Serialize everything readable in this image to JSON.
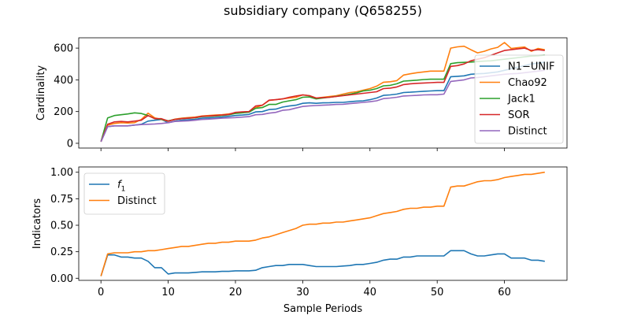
{
  "chart_data": {
    "title": "subsidiary company (Q658255)",
    "xlabel": "Sample Periods",
    "x_ticks": [
      0,
      10,
      20,
      30,
      40,
      50,
      60
    ],
    "xlim": [
      -3.3,
      69.3
    ],
    "panels": [
      {
        "type": "line",
        "ylabel": "Cardinality",
        "ylim": [
          -30,
          665
        ],
        "y_ticks": [
          0,
          200,
          400,
          600
        ],
        "legend_position": "center-right",
        "series": [
          {
            "name": "N1−UNIF",
            "color": "#1f77b4",
            "values": [
              10,
              105,
              110,
              110,
              110,
              115,
              120,
              140,
              145,
              150,
              130,
              140,
              145,
              148,
              150,
              158,
              160,
              162,
              165,
              170,
              175,
              178,
              182,
              198,
              200,
              213,
              215,
              228,
              235,
              240,
              252,
              255,
              252,
              255,
              256,
              258,
              258,
              262,
              266,
              268,
              275,
              285,
              302,
              305,
              310,
              320,
              322,
              325,
              328,
              330,
              332,
              332,
              420,
              422,
              425,
              435,
              438,
              440,
              445,
              450,
              460,
              470,
              480,
              490,
              500,
              505,
              512
            ]
          },
          {
            "name": "Chao92",
            "color": "#ff7f0e",
            "values": [
              10,
              115,
              125,
              130,
              128,
              130,
              150,
              190,
              160,
              150,
              140,
              152,
              158,
              162,
              165,
              172,
              175,
              178,
              180,
              185,
              192,
              196,
              200,
              225,
              240,
              270,
              275,
              280,
              285,
              290,
              305,
              300,
              285,
              290,
              295,
              300,
              310,
              320,
              325,
              335,
              345,
              360,
              385,
              388,
              395,
              430,
              438,
              445,
              450,
              455,
              455,
              455,
              600,
              608,
              612,
              590,
              570,
              580,
              595,
              605,
              635,
              598,
              603,
              607,
              580,
              598,
              590
            ]
          },
          {
            "name": "Jack1",
            "color": "#2ca02c",
            "values": [
              10,
              160,
              175,
              180,
              185,
              192,
              188,
              175,
              155,
              152,
              142,
              150,
              155,
              158,
              160,
              168,
              170,
              172,
              175,
              180,
              188,
              192,
              196,
              220,
              225,
              245,
              245,
              260,
              268,
              275,
              290,
              292,
              280,
              285,
              290,
              296,
              302,
              310,
              318,
              330,
              335,
              345,
              362,
              365,
              375,
              392,
              395,
              398,
              402,
              404,
              404,
              404,
              502,
              508,
              510,
              512,
              515,
              518,
              520,
              525,
              530,
              535,
              540,
              545,
              550,
              552,
              556
            ]
          },
          {
            "name": "SOR",
            "color": "#d62728",
            "values": [
              10,
              120,
              135,
              138,
              135,
              140,
              145,
              175,
              155,
              155,
              140,
              150,
              155,
              158,
              162,
              170,
              172,
              175,
              178,
              182,
              195,
              198,
              200,
              235,
              240,
              272,
              275,
              280,
              290,
              298,
              305,
              300,
              285,
              288,
              290,
              295,
              300,
              305,
              310,
              315,
              320,
              325,
              345,
              348,
              355,
              370,
              375,
              378,
              380,
              382,
              384,
              384,
              485,
              490,
              500,
              520,
              530,
              540,
              555,
              570,
              585,
              590,
              595,
              600,
              585,
              590,
              585
            ]
          },
          {
            "name": "Distinct",
            "color": "#9467bd",
            "values": [
              10,
              105,
              110,
              110,
              110,
              115,
              118,
              120,
              122,
              125,
              130,
              138,
              140,
              142,
              145,
              150,
              152,
              155,
              158,
              160,
              162,
              165,
              168,
              180,
              182,
              190,
              195,
              208,
              212,
              222,
              232,
              236,
              238,
              240,
              242,
              245,
              246,
              250,
              254,
              258,
              262,
              268,
              282,
              285,
              290,
              298,
              300,
              302,
              305,
              306,
              306,
              310,
              390,
              395,
              400,
              412,
              415,
              420,
              425,
              430,
              435,
              438,
              440,
              445,
              450,
              455,
              460
            ]
          }
        ]
      },
      {
        "type": "line",
        "ylabel": "Indicators",
        "ylim": [
          -0.02,
          1.05
        ],
        "y_ticks": [
          "0.00",
          "0.25",
          "0.50",
          "0.75",
          "1.00"
        ],
        "legend_position": "upper-left",
        "series": [
          {
            "name": "f1",
            "name_main": "f",
            "name_sub": "1",
            "color": "#1f77b4",
            "values": [
              0.02,
              0.22,
              0.22,
              0.2,
              0.2,
              0.19,
              0.19,
              0.16,
              0.1,
              0.1,
              0.04,
              0.05,
              0.05,
              0.05,
              0.055,
              0.06,
              0.06,
              0.06,
              0.065,
              0.065,
              0.07,
              0.07,
              0.07,
              0.075,
              0.1,
              0.11,
              0.12,
              0.12,
              0.13,
              0.13,
              0.13,
              0.12,
              0.11,
              0.11,
              0.11,
              0.11,
              0.115,
              0.12,
              0.13,
              0.13,
              0.14,
              0.15,
              0.17,
              0.18,
              0.18,
              0.2,
              0.2,
              0.21,
              0.21,
              0.21,
              0.21,
              0.21,
              0.26,
              0.26,
              0.26,
              0.23,
              0.21,
              0.21,
              0.22,
              0.23,
              0.23,
              0.19,
              0.19,
              0.19,
              0.17,
              0.17,
              0.16
            ]
          },
          {
            "name": "Distinct",
            "color": "#ff7f0e",
            "values": [
              0.02,
              0.23,
              0.24,
              0.24,
              0.24,
              0.25,
              0.25,
              0.26,
              0.26,
              0.27,
              0.28,
              0.29,
              0.3,
              0.3,
              0.31,
              0.32,
              0.33,
              0.33,
              0.34,
              0.34,
              0.35,
              0.35,
              0.35,
              0.36,
              0.38,
              0.39,
              0.41,
              0.43,
              0.45,
              0.47,
              0.5,
              0.51,
              0.51,
              0.52,
              0.52,
              0.53,
              0.53,
              0.54,
              0.55,
              0.56,
              0.57,
              0.59,
              0.61,
              0.62,
              0.63,
              0.65,
              0.66,
              0.66,
              0.67,
              0.67,
              0.68,
              0.68,
              0.86,
              0.87,
              0.87,
              0.89,
              0.91,
              0.92,
              0.92,
              0.93,
              0.95,
              0.96,
              0.97,
              0.98,
              0.98,
              0.99,
              1.0
            ]
          }
        ]
      }
    ]
  }
}
